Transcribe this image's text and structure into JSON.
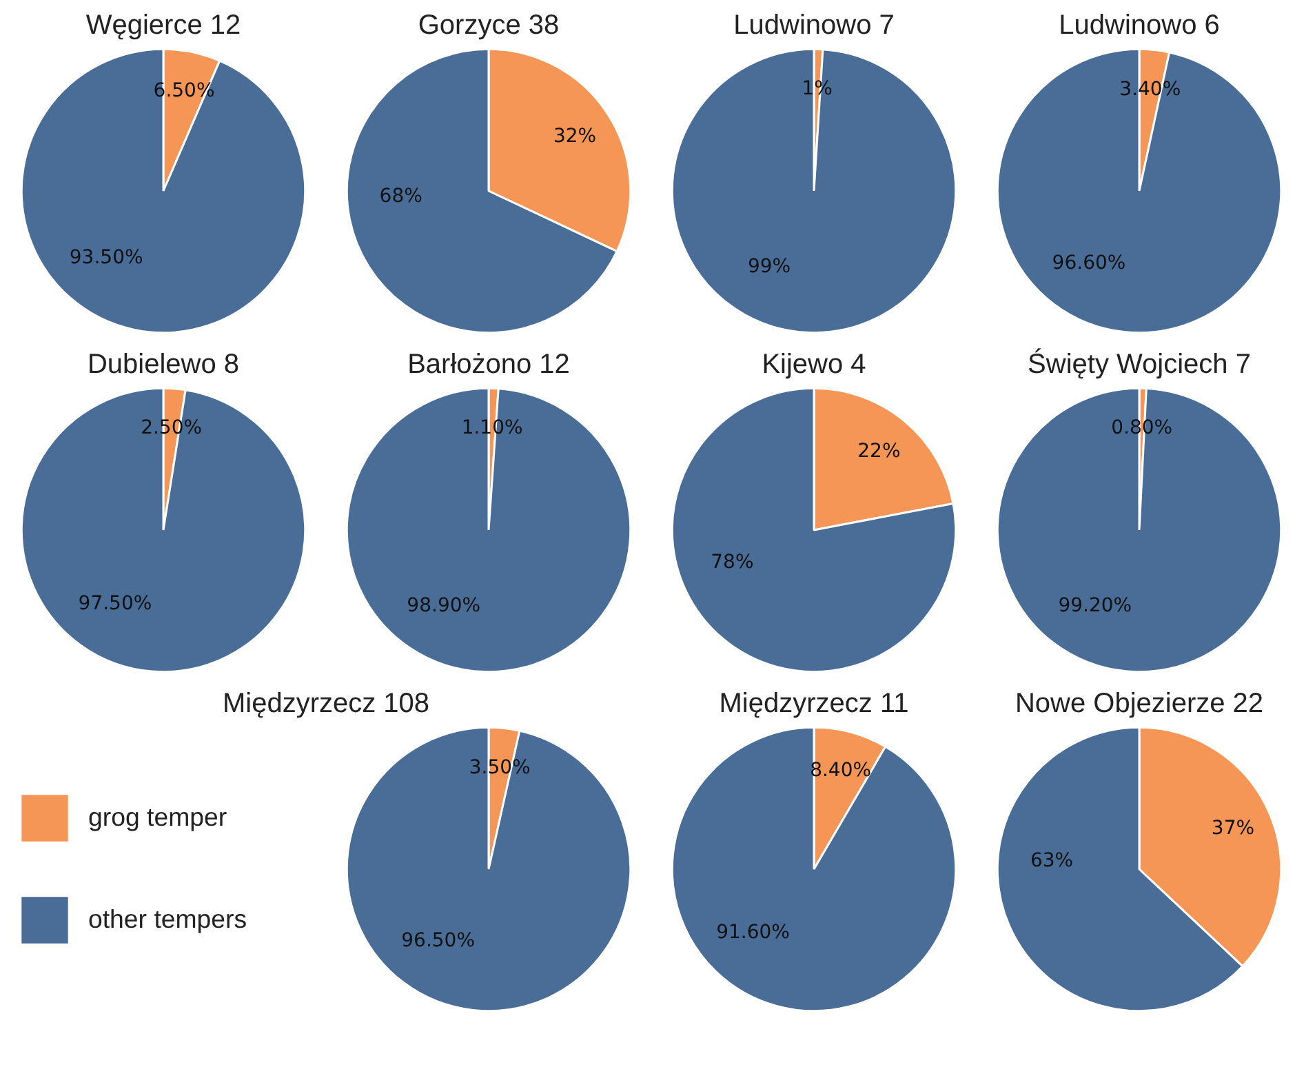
{
  "chart_data": [
    {
      "type": "pie",
      "title": "Węgierce 12",
      "categories": [
        null,
        null
      ],
      "values": [
        6.5,
        93.5
      ],
      "colors": [
        "#f59656",
        "#4a6d98"
      ],
      "value_labels": [
        "6.50%",
        "93.50%"
      ]
    },
    {
      "type": "pie",
      "title": "Gorzyce 38",
      "categories": [
        null,
        null
      ],
      "values": [
        32,
        68
      ],
      "colors": [
        "#f59656",
        "#4a6d98"
      ],
      "value_labels": [
        "32%",
        "68%"
      ]
    },
    {
      "type": "pie",
      "title": "Ludwinowo 7",
      "categories": [
        null,
        null
      ],
      "values": [
        1,
        99
      ],
      "colors": [
        "#f59656",
        "#4a6d98"
      ],
      "value_labels": [
        "1%",
        "99%"
      ]
    },
    {
      "type": "pie",
      "title": "Ludwinowo 6",
      "categories": [
        null,
        null
      ],
      "values": [
        3.4,
        96.6
      ],
      "colors": [
        "#f59656",
        "#4a6d98"
      ],
      "value_labels": [
        "3.40%",
        "96.60%"
      ]
    },
    {
      "type": "pie",
      "title": "Dubielewo 8",
      "categories": [
        null,
        null
      ],
      "values": [
        2.5,
        97.5
      ],
      "colors": [
        "#f59656",
        "#4a6d98"
      ],
      "value_labels": [
        "2.50%",
        "97.50%"
      ]
    },
    {
      "type": "pie",
      "title": "Barłożono 12",
      "categories": [
        null,
        null
      ],
      "values": [
        1.1,
        98.9
      ],
      "colors": [
        "#f59656",
        "#4a6d98"
      ],
      "value_labels": [
        "1.10%",
        "98.90%"
      ]
    },
    {
      "type": "pie",
      "title": "Kijewo 4",
      "categories": [
        null,
        null
      ],
      "values": [
        22,
        78
      ],
      "colors": [
        "#f59656",
        "#4a6d98"
      ],
      "value_labels": [
        "22%",
        "78%"
      ]
    },
    {
      "type": "pie",
      "title": "Święty Wojciech 7",
      "categories": [
        null,
        null
      ],
      "values": [
        0.8,
        99.2
      ],
      "colors": [
        "#f59656",
        "#4a6d98"
      ],
      "value_labels": [
        "0.80%",
        "99.20%"
      ]
    },
    {
      "type": "pie",
      "title": "Międzyrzecz 108",
      "categories": [
        "grog temper",
        "other tempers"
      ],
      "values": [
        3.5,
        96.5
      ],
      "colors": [
        "#f59656",
        "#4a6d98"
      ],
      "value_labels": [
        "3.50%",
        "96.50%"
      ],
      "legend": "left"
    },
    {
      "type": "pie",
      "title": "Międzyrzecz 11",
      "categories": [
        null,
        null
      ],
      "values": [
        8.4,
        91.6
      ],
      "colors": [
        "#f59656",
        "#4a6d98"
      ],
      "value_labels": [
        "8.40%",
        "91.60%"
      ]
    },
    {
      "type": "pie",
      "title": "Nowe Objezierze 22",
      "categories": [
        null,
        null
      ],
      "values": [
        37,
        63
      ],
      "colors": [
        "#f59656",
        "#4a6d98"
      ],
      "value_labels": [
        "37%",
        "63%"
      ]
    }
  ]
}
